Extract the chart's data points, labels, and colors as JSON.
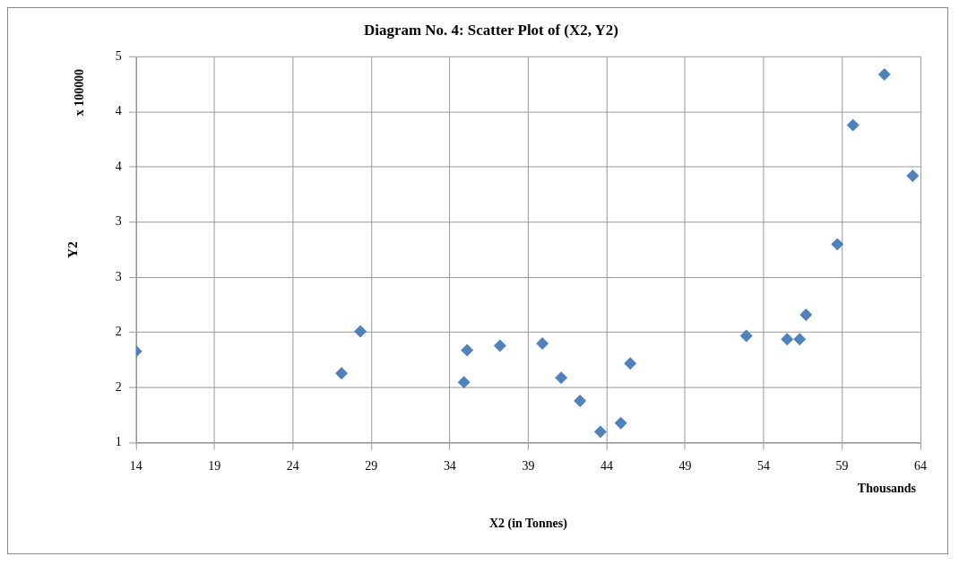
{
  "chart_data": {
    "type": "scatter",
    "title": "Diagram No. 4: Scatter Plot of (X2, Y2)",
    "xlabel": "X2 (in Tonnes)",
    "ylabel": "Y2",
    "annotations": [
      "x 100000",
      "Thousands"
    ],
    "x": [
      14.0,
      27.1,
      28.3,
      34.9,
      35.1,
      37.2,
      39.9,
      41.1,
      42.3,
      43.6,
      44.9,
      45.5,
      52.9,
      55.5,
      56.3,
      56.7,
      58.7,
      59.7,
      61.7,
      63.5
    ],
    "series": [
      {
        "color": "#4f81bd",
        "values": [
          1.83,
          1.63,
          2.01,
          1.55,
          1.84,
          1.88,
          1.9,
          1.59,
          1.38,
          1.1,
          1.18,
          1.72,
          1.97,
          1.94,
          1.94,
          2.16,
          2.8,
          3.88,
          4.34,
          3.42
        ]
      }
    ],
    "xlim": [
      14,
      64
    ],
    "xticks": [
      14,
      19,
      24,
      29,
      34,
      39,
      44,
      49,
      54,
      59,
      64
    ],
    "ylim": [
      1,
      4.5
    ],
    "yticks": [
      1,
      {
        "value": 1.5,
        "label": "2"
      },
      2,
      {
        "value": 2.5,
        "label": "3"
      },
      3,
      {
        "value": 3.5,
        "label": "4"
      },
      4,
      {
        "value": 4.5,
        "label": "5"
      }
    ],
    "grid": true,
    "marker": "diamond",
    "legend": false
  }
}
